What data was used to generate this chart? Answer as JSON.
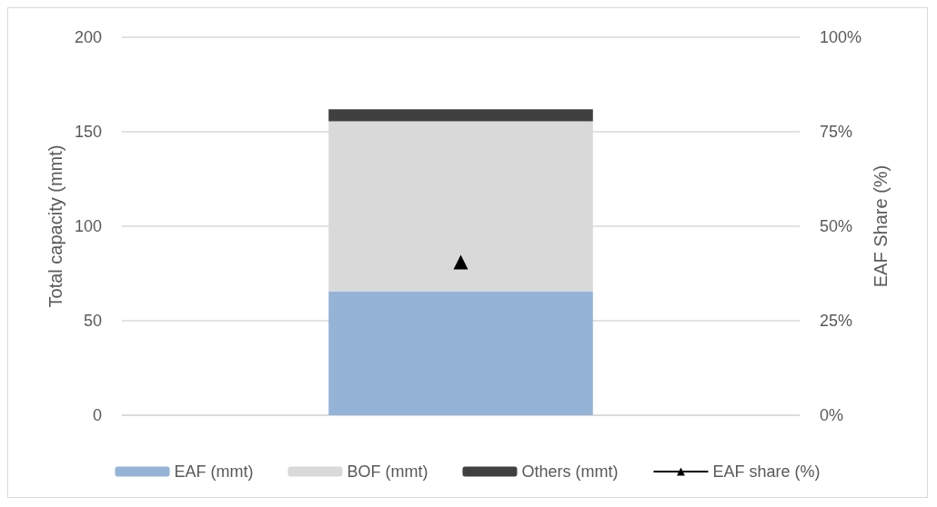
{
  "chart_data": {
    "type": "bar",
    "stacked": true,
    "categories": [
      null
    ],
    "ylabel": "Total capacity (mmt)",
    "y2label": "EAF Share (%)",
    "ylim": [
      0,
      200
    ],
    "yticks": [
      0,
      50,
      100,
      150,
      200
    ],
    "y2lim": [
      0,
      100
    ],
    "y2ticks": [
      {
        "value": 0,
        "label": "0%"
      },
      {
        "value": 25,
        "label": "25%"
      },
      {
        "value": 50,
        "label": "50%"
      },
      {
        "value": 75,
        "label": "75%"
      },
      {
        "value": 100,
        "label": "100%"
      }
    ],
    "series": [
      {
        "name": "EAF (mmt)",
        "color": "#95b3d7",
        "values": [
          65.6
        ]
      },
      {
        "name": "BOF (mmt)",
        "color": "#d9d9d9",
        "values": [
          89.9
        ]
      },
      {
        "name": "Others (mmt)",
        "color": "#404040",
        "values": [
          6.4
        ]
      },
      {
        "name": "EAF share (%)",
        "type": "line",
        "axis": "y2",
        "color": "#000000",
        "marker": "triangle",
        "values": [
          40.5
        ]
      }
    ],
    "grid": "y",
    "legend": "bottom"
  }
}
